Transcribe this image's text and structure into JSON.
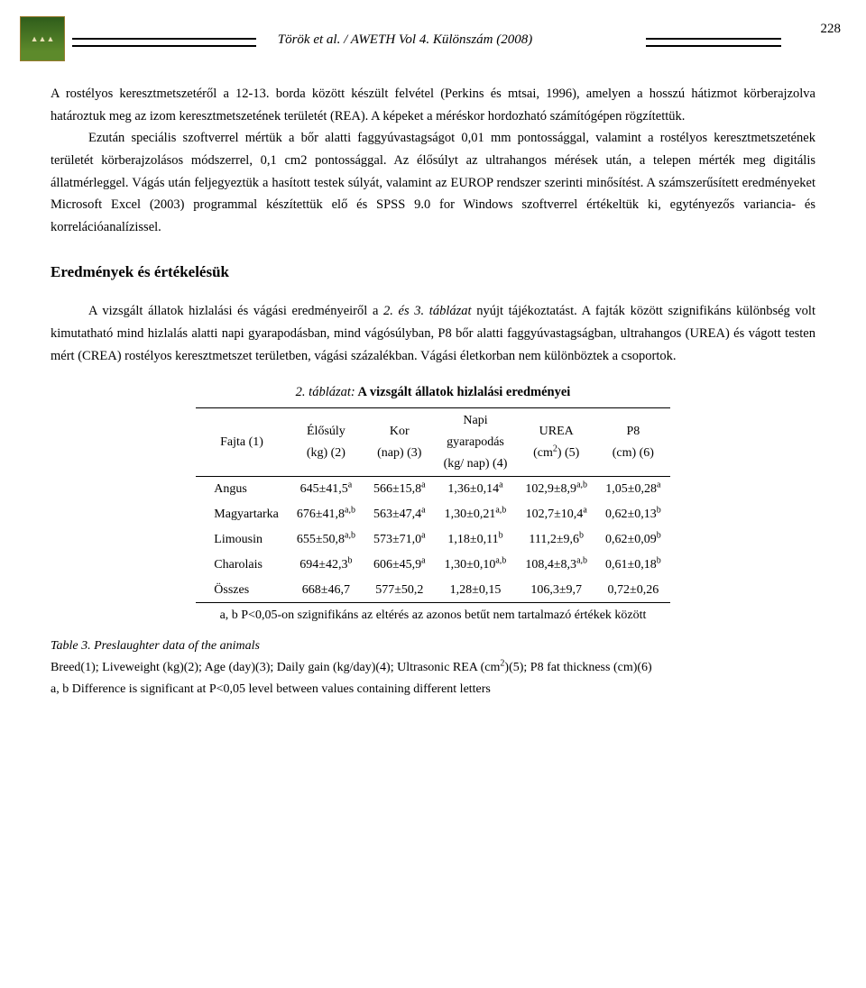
{
  "header": {
    "running": "Török et al. / AWETH Vol 4. Különszám (2008)",
    "page_number": "228"
  },
  "paragraphs": {
    "p1": "A rostélyos keresztmetszetéről a 12-13. borda között készült felvétel (Perkins és mtsai, 1996), amelyen a hosszú hátizmot körberajzolva határoztuk meg az izom keresztmetszetének területét (REA). A képeket a méréskor hordozható számítógépen rögzítettük.",
    "p2": "Ezután speciális szoftverrel mértük a bőr alatti faggyúvastagságot 0,01 mm pontossággal, valamint a rostélyos keresztmetszetének területét körberajzolásos módszerrel, 0,1 cm2 pontossággal. Az élősúlyt az ultrahangos mérések után, a telepen mérték meg digitális állatmérleggel. Vágás után feljegyeztük a hasított testek súlyát, valamint az EUROP rendszer szerinti minősítést. A számszerűsített eredményeket Microsoft Excel (2003) programmal készítettük elő és SPSS 9.0 for Windows szoftverrel értékeltük ki, egytényezős variancia- és korrelációanalízissel.",
    "h2": "Eredmények és értékelésük",
    "p3_a": "A vizsgált állatok hizlalási és vágási eredményeiről a ",
    "p3_b": "2. és 3. táblázat",
    "p3_c": " nyújt tájékoztatást. A fajták között szignifikáns különbség volt kimutatható mind hizlalás alatti napi gyarapodásban, mind vágósúlyban, P8 bőr alatti faggyúvastagságban, ultrahangos (UREA) és vágott testen mért (CREA) rostélyos keresztmetszet területben, vágási százalékban. Vágási életkorban nem különböztek a csoportok."
  },
  "table": {
    "caption_italic": "2. táblázat:",
    "caption_bold": " A vizsgált állatok hizlalási eredményei",
    "cols": {
      "c1": "Fajta (1)",
      "c2a": "Élősúly",
      "c2b": "(kg) (2)",
      "c3a": "Kor",
      "c3b": "(nap) (3)",
      "c4a": "Napi",
      "c4b": "gyarapodás",
      "c4c": "(kg/ nap) (4)",
      "c5a": "UREA",
      "c5b": "(cm",
      "c5sup": "2",
      "c5c": ") (5)",
      "c6a": "P8",
      "c6b": "(cm) (6)"
    },
    "rows": [
      {
        "fajta": "Angus",
        "v2": "645±41,5",
        "s2": "a",
        "v3": "566±15,8",
        "s3": "a",
        "v4": "1,36±0,14",
        "s4": "a",
        "v5": "102,9±8,9",
        "s5": "a,b",
        "v6": "1,05±0,28",
        "s6": "a"
      },
      {
        "fajta": "Magyartarka",
        "v2": "676±41,8",
        "s2": "a,b",
        "v3": "563±47,4",
        "s3": "a",
        "v4": "1,30±0,21",
        "s4": "a,b",
        "v5": "102,7±10,4",
        "s5": "a",
        "v6": "0,62±0,13",
        "s6": "b"
      },
      {
        "fajta": "Limousin",
        "v2": "655±50,8",
        "s2": "a,b",
        "v3": "573±71,0",
        "s3": "a",
        "v4": "1,18±0,11",
        "s4": "b",
        "v5": "111,2±9,6",
        "s5": "b",
        "v6": "0,62±0,09",
        "s6": "b"
      },
      {
        "fajta": "Charolais",
        "v2": "694±42,3",
        "s2": "b",
        "v3": "606±45,9",
        "s3": "a",
        "v4": "1,30±0,10",
        "s4": "a,b",
        "v5": "108,4±8,3",
        "s5": "a,b",
        "v6": "0,61±0,18",
        "s6": "b"
      },
      {
        "fajta": "Összes",
        "v2": "668±46,7",
        "s2": "",
        "v3": "577±50,2",
        "s3": "",
        "v4": "1,28±0,15",
        "s4": "",
        "v5": "106,3±9,7",
        "s5": "",
        "v6": "0,72±0,26",
        "s6": ""
      }
    ],
    "footnote": "a, b P<0,05-on szignifikáns az eltérés az azonos betűt nem tartalmazó értékek között"
  },
  "table_note": {
    "title": "Table 3. Preslaughter data of the animals",
    "body_a": "Breed(1); Liveweight (kg)(2); Age (day)(3); Daily gain (kg/day)(4); Ultrasonic REA (cm",
    "body_sup": "2",
    "body_b": ")(5); P8 fat thickness (cm)(6)",
    "body_c": "a, b Difference is significant at P<0,05 level between values containing different letters"
  }
}
